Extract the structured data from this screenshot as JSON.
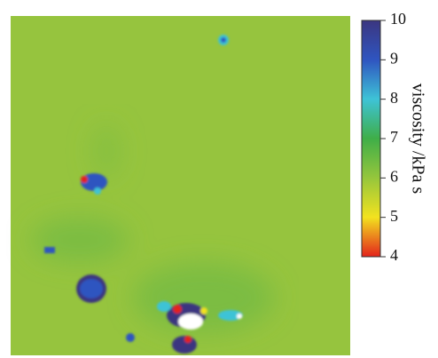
{
  "chart_data": {
    "type": "heatmap",
    "colorbar_label": "viscosity /kPa s",
    "clim": [
      4,
      10
    ],
    "cticks": [
      4,
      5,
      6,
      7,
      8,
      9,
      10
    ],
    "colormap": [
      "#e3231c",
      "#f2e21f",
      "#96c63c",
      "#3fae48",
      "#3ec3d6",
      "#2f55c0",
      "#3b3680"
    ]
  }
}
